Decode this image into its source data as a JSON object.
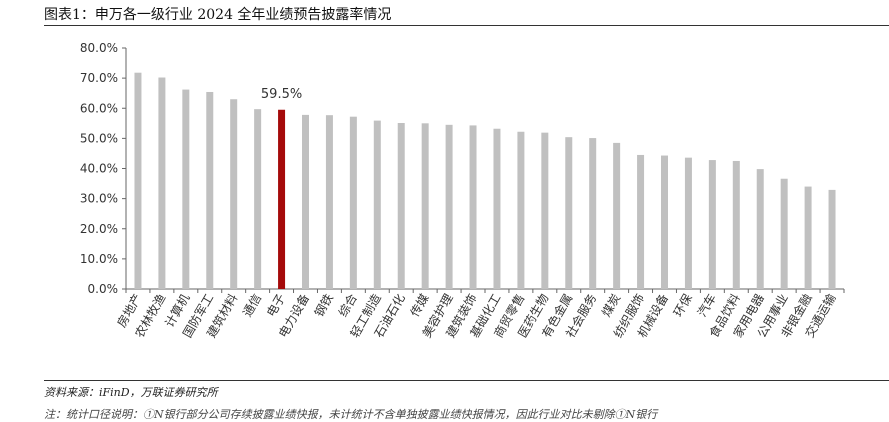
{
  "figure": {
    "title": "图表1：申万各一级行业 2024 全年业绩预告披露率情况",
    "source": "资料来源：iFinD，万联证券研究所",
    "note": "注：统计口径说明：①N银行部分公司存续披露业绩快报，未计统计不含单独披露业绩快报情况，因此行业对比未剔除①N银行"
  },
  "colors": {
    "bar": "#c0c0c0",
    "highlight": "#a50a0a",
    "axis": "#666666",
    "text": "#333333"
  },
  "chart_data": {
    "type": "bar",
    "categories": [
      "房地产",
      "农林牧渔",
      "计算机",
      "国防军工",
      "建筑材料",
      "通信",
      "电子",
      "电力设备",
      "钢铁",
      "综合",
      "轻工制造",
      "石油石化",
      "传媒",
      "美容护理",
      "建筑装饰",
      "基础化工",
      "商贸零售",
      "医药生物",
      "有色金属",
      "社会服务",
      "煤炭",
      "纺织服饰",
      "机械设备",
      "环保",
      "汽车",
      "食品饮料",
      "家用电器",
      "公用事业",
      "非银金融",
      "交通运输"
    ],
    "values": [
      71.8,
      70.2,
      66.2,
      65.4,
      63.0,
      59.7,
      59.5,
      57.8,
      57.7,
      57.2,
      55.9,
      55.1,
      55.0,
      54.5,
      54.3,
      53.2,
      52.2,
      51.9,
      50.4,
      50.1,
      48.5,
      44.5,
      44.3,
      43.6,
      42.8,
      42.5,
      39.8,
      36.6,
      34.0,
      32.9
    ],
    "highlight_index": 6,
    "annotation": "59.5%",
    "yticks": [
      "0.0%",
      "10.0%",
      "20.0%",
      "30.0%",
      "40.0%",
      "50.0%",
      "60.0%",
      "70.0%",
      "80.0%"
    ],
    "ylim": [
      0,
      80
    ],
    "title": "",
    "xlabel": "",
    "ylabel": "",
    "grid": false,
    "legend": "none"
  }
}
